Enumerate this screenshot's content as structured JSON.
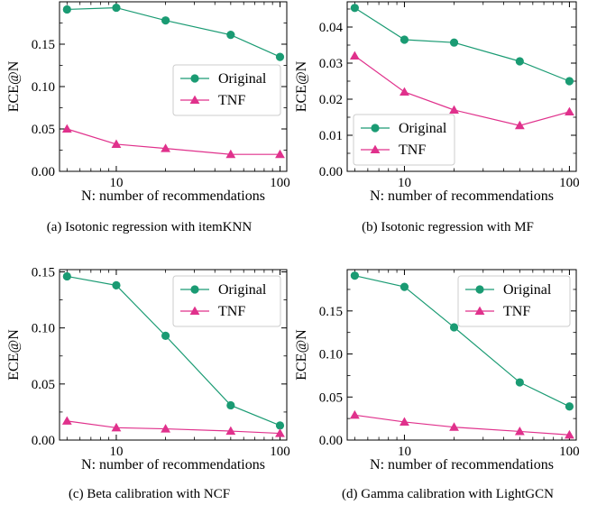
{
  "colors": {
    "original": "#1a9b73",
    "tnf": "#e0318c",
    "axis": "#000000"
  },
  "chart_data": [
    {
      "type": "line",
      "caption": "(a)  Isotonic regression with itemKNN",
      "xlabel": "N: number of recommendations",
      "ylabel": "ECE@N",
      "x": [
        5,
        10,
        20,
        50,
        100
      ],
      "x_scale": "log",
      "xlim": [
        4.5,
        110
      ],
      "ylim": [
        0,
        0.2
      ],
      "xticks": [
        10,
        100
      ],
      "xtick_labels": [
        "10",
        "100"
      ],
      "yticks": [
        0,
        0.05,
        0.1,
        0.15
      ],
      "ytick_labels": [
        "0.00",
        "0.05",
        "0.10",
        "0.15"
      ],
      "legend_position": "center-right",
      "series": [
        {
          "name": "Original",
          "marker": "circle",
          "values": [
            0.191,
            0.193,
            0.178,
            0.161,
            0.135
          ]
        },
        {
          "name": "TNF",
          "marker": "triangle",
          "values": [
            0.05,
            0.032,
            0.027,
            0.02,
            0.02
          ]
        }
      ]
    },
    {
      "type": "line",
      "caption": "(b)  Isotonic regression with MF",
      "xlabel": "N: number of recommendations",
      "ylabel": "ECE@N",
      "x": [
        5,
        10,
        20,
        50,
        100
      ],
      "x_scale": "log",
      "xlim": [
        4.5,
        110
      ],
      "ylim": [
        0,
        0.047
      ],
      "xticks": [
        10,
        100
      ],
      "xtick_labels": [
        "10",
        "100"
      ],
      "yticks": [
        0,
        0.01,
        0.02,
        0.03,
        0.04
      ],
      "ytick_labels": [
        "0.00",
        "0.01",
        "0.02",
        "0.03",
        "0.04"
      ],
      "legend_position": "lower-left",
      "series": [
        {
          "name": "Original",
          "marker": "circle",
          "values": [
            0.0453,
            0.0365,
            0.0357,
            0.0305,
            0.025
          ]
        },
        {
          "name": "TNF",
          "marker": "triangle",
          "values": [
            0.032,
            0.022,
            0.017,
            0.0127,
            0.0165
          ]
        }
      ]
    },
    {
      "type": "line",
      "caption": "(c)  Beta calibration with NCF",
      "xlabel": "N: number of recommendations",
      "ylabel": "ECE@N",
      "x": [
        5,
        10,
        20,
        50,
        100
      ],
      "x_scale": "log",
      "xlim": [
        4.5,
        110
      ],
      "ylim": [
        0,
        0.152
      ],
      "xticks": [
        10,
        100
      ],
      "xtick_labels": [
        "10",
        "100"
      ],
      "yticks": [
        0,
        0.05,
        0.1,
        0.15
      ],
      "ytick_labels": [
        "0.00",
        "0.05",
        "0.10",
        "0.15"
      ],
      "legend_position": "top-right",
      "series": [
        {
          "name": "Original",
          "marker": "circle",
          "values": [
            0.146,
            0.138,
            0.093,
            0.031,
            0.013
          ]
        },
        {
          "name": "TNF",
          "marker": "triangle",
          "values": [
            0.017,
            0.011,
            0.01,
            0.008,
            0.006
          ]
        }
      ]
    },
    {
      "type": "line",
      "caption": "(d)  Gamma calibration with LightGCN",
      "xlabel": "N: number of recommendations",
      "ylabel": "ECE@N",
      "x": [
        5,
        10,
        20,
        50,
        100
      ],
      "x_scale": "log",
      "xlim": [
        4.5,
        110
      ],
      "ylim": [
        0,
        0.198
      ],
      "xticks": [
        10,
        100
      ],
      "xtick_labels": [
        "10",
        "100"
      ],
      "yticks": [
        0,
        0.05,
        0.1,
        0.15
      ],
      "ytick_labels": [
        "0.00",
        "0.05",
        "0.10",
        "0.15"
      ],
      "legend_position": "top-right",
      "series": [
        {
          "name": "Original",
          "marker": "circle",
          "values": [
            0.191,
            0.178,
            0.131,
            0.067,
            0.039
          ]
        },
        {
          "name": "TNF",
          "marker": "triangle",
          "values": [
            0.029,
            0.021,
            0.015,
            0.01,
            0.006
          ]
        }
      ]
    }
  ]
}
